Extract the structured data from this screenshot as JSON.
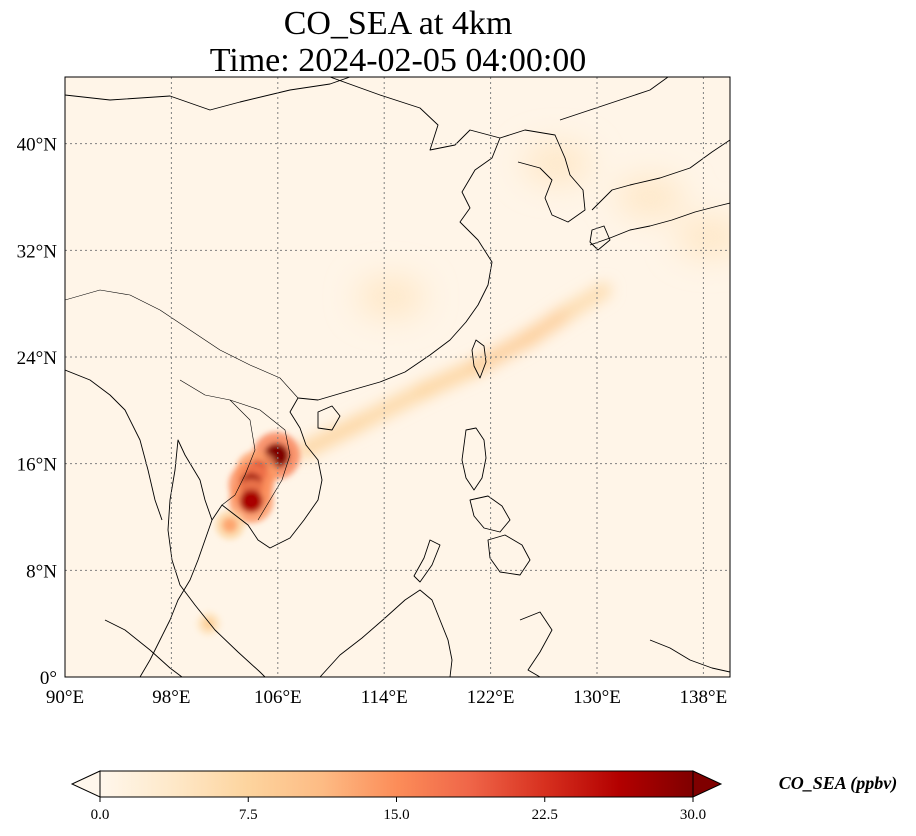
{
  "title": {
    "line1": "CO_SEA at 4km",
    "line2": "Time: 2024-02-05 04:00:00"
  },
  "map": {
    "projection": "PlateCarree",
    "lon_range": [
      90,
      140
    ],
    "lat_range": [
      0,
      45
    ],
    "gridlines": true,
    "lon_ticks": [
      90,
      98,
      106,
      114,
      122,
      130,
      138
    ],
    "lat_ticks": [
      0,
      8,
      16,
      24,
      32,
      40
    ],
    "lon_tick_labels": [
      "90°E",
      "98°E",
      "106°E",
      "114°E",
      "122°E",
      "130°E",
      "138°E"
    ],
    "lat_tick_labels": [
      "0°",
      "8°N",
      "16°N",
      "24°N",
      "32°N",
      "40°N"
    ],
    "colors": {
      "land_line": "#000000",
      "gridline": "#808080",
      "background_field": "#fff5e8"
    }
  },
  "field": {
    "variable": "CO_SEA",
    "units": "ppbv",
    "hotspots": [
      {
        "lon": 105.9,
        "lat": 16.6,
        "value": 30
      },
      {
        "lon": 104.4,
        "lat": 15.4,
        "value": 25
      },
      {
        "lon": 104.0,
        "lat": 14.4,
        "value": 28
      },
      {
        "lon": 104.0,
        "lat": 13.2,
        "value": 27
      },
      {
        "lon": 102.4,
        "lat": 11.4,
        "value": 13
      },
      {
        "lon": 100.8,
        "lat": 4.0,
        "value": 8
      }
    ],
    "plume": [
      {
        "lon": 108.0,
        "lat": 17.0,
        "value": 8
      },
      {
        "lon": 112.0,
        "lat": 19.0,
        "value": 7
      },
      {
        "lon": 117.0,
        "lat": 21.5,
        "value": 7
      },
      {
        "lon": 121.0,
        "lat": 23.3,
        "value": 8
      },
      {
        "lon": 125.0,
        "lat": 25.5,
        "value": 9
      },
      {
        "lon": 128.0,
        "lat": 27.5,
        "value": 8
      },
      {
        "lon": 130.5,
        "lat": 29.0,
        "value": 4
      }
    ],
    "diffuse": [
      {
        "lon": 114.5,
        "lat": 28.5,
        "value": 2
      },
      {
        "lon": 127.0,
        "lat": 38.5,
        "value": 2
      },
      {
        "lon": 134.0,
        "lat": 36.0,
        "value": 2
      },
      {
        "lon": 138.5,
        "lat": 33.0,
        "value": 2
      }
    ]
  },
  "colorbar": {
    "label": "CO_SEA (ppbv)",
    "min": 0,
    "max": 30,
    "extend": "both",
    "colormap": "OrRd",
    "ticks": [
      0,
      7.5,
      15,
      22.5,
      30
    ],
    "tick_labels": [
      "0.0",
      "7.5",
      "15.0",
      "22.5",
      "30.0"
    ]
  }
}
